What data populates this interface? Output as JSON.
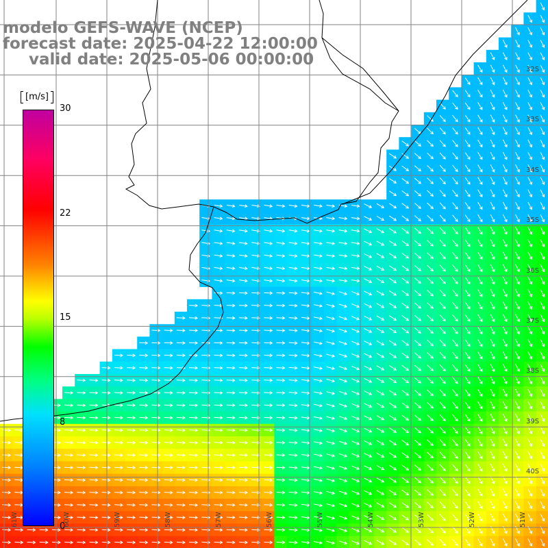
{
  "title": {
    "line1": "modelo GEFS-WAVE (NCEP)",
    "line2": "forecast date: 2025-04-22 12:00:00",
    "line3": "valid date: 2025-05-06 00:00:00"
  },
  "colorbar": {
    "units": "[m/s]",
    "ticks": [
      {
        "label": "30",
        "value": 30
      },
      {
        "label": "22",
        "value": 22
      },
      {
        "label": "15",
        "value": 15
      },
      {
        "label": "8",
        "value": 8
      },
      {
        "label": "0",
        "value": 0
      }
    ],
    "colors": [
      "#0000ff",
      "#0080ff",
      "#00e0ff",
      "#00ff80",
      "#00ff00",
      "#c0ff00",
      "#ffff00",
      "#ff8000",
      "#ff0000",
      "#ff0060",
      "#c000a0"
    ]
  },
  "axes": {
    "lon_labels": [
      "61W",
      "60W",
      "59W",
      "58W",
      "57W",
      "56W",
      "55W",
      "54W",
      "53W",
      "52W",
      "51W"
    ],
    "lat_labels": [
      "32S",
      "33S",
      "34S",
      "35S",
      "36S",
      "37S",
      "38S",
      "39S",
      "40S"
    ]
  },
  "colors": {
    "land": "#ffffff",
    "coast": "#000000",
    "grid": "#808080",
    "arrows": "#ffffff",
    "title_text": "#808080"
  }
}
